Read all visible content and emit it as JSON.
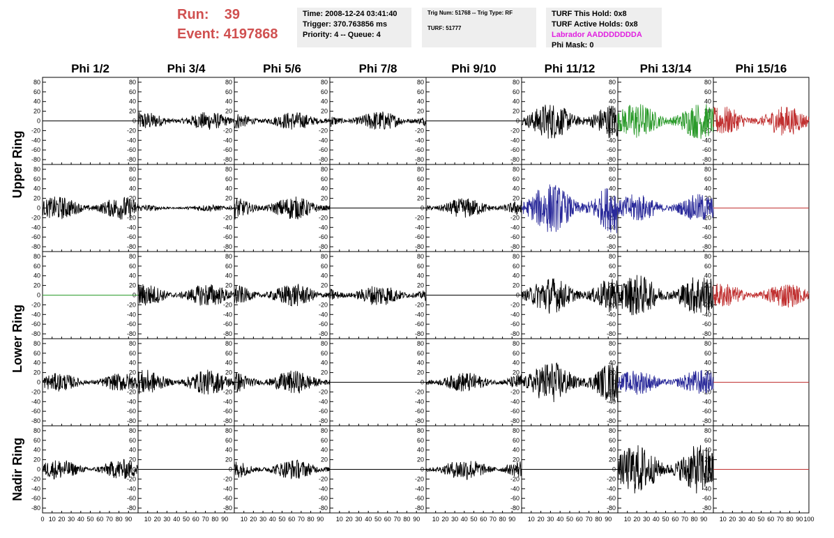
{
  "header": {
    "run_label": "Run:    39",
    "event_label": "Event: 4197868",
    "box1": [
      "Time: 2008-12-24 03:41:40",
      "Trigger: 370.763856 ms",
      "Priority: 4 -- Queue: 4"
    ],
    "box2": [
      "Trig Num: 51768 -- Trig Type: RF",
      "TURF: 51777"
    ],
    "box3": [
      "TURF This Hold: 0x8",
      "TURF Active Holds: 0x8",
      "Labrador AADDDDDDDA",
      "Phi Mask: 0"
    ]
  },
  "colors": {
    "accent_text": "#d05050",
    "magenta_text": "#e020e0",
    "info_bg": "#eeeeee",
    "black": "#000000",
    "green": "#2a9a2a",
    "blue": "#2a2a9a",
    "red": "#c03030"
  },
  "chart_data": {
    "type": "line",
    "columns": [
      "Phi 1/2",
      "Phi 3/4",
      "Phi 5/6",
      "Phi 7/8",
      "Phi 9/10",
      "Phi 11/12",
      "Phi 13/14",
      "Phi 15/16"
    ],
    "rows": [
      "Upper Ring",
      "Lower Ring",
      "Nadir Ring"
    ],
    "ylim": [
      -90,
      90
    ],
    "y_ticks": [
      -80,
      -60,
      -40,
      -20,
      0,
      20,
      40,
      60,
      80
    ],
    "xlim": [
      0,
      100
    ],
    "x_ticks": [
      0,
      10,
      20,
      30,
      40,
      50,
      60,
      70,
      80,
      90,
      100
    ],
    "x_tick_labels": [
      "0",
      "10",
      "20",
      "30",
      "40",
      "50",
      "60",
      "70",
      "80",
      "90",
      "10",
      "20",
      "30",
      "40",
      "50",
      "60",
      "70",
      "80",
      "90",
      "10",
      "20",
      "30",
      "40",
      "50",
      "60",
      "70",
      "80",
      "90",
      "10",
      "20",
      "30",
      "40",
      "50",
      "60",
      "70",
      "80",
      "90",
      "10",
      "20",
      "30",
      "40",
      "50",
      "60",
      "70",
      "80",
      "90",
      "10",
      "20",
      "30",
      "40",
      "50",
      "60",
      "70",
      "80",
      "90",
      "10",
      "20",
      "30",
      "40",
      "50",
      "60",
      "70",
      "80",
      "90",
      "10",
      "20",
      "30",
      "40",
      "50",
      "60",
      "70",
      "80",
      "90",
      "100"
    ],
    "panels": [
      {
        "row": 0,
        "col": 0,
        "color": "black",
        "amp": 0
      },
      {
        "row": 0,
        "col": 1,
        "color": "black",
        "amp": 11
      },
      {
        "row": 0,
        "col": 2,
        "color": "black",
        "amp": 11
      },
      {
        "row": 0,
        "col": 3,
        "color": "black",
        "amp": 12
      },
      {
        "row": 0,
        "col": 4,
        "color": "black",
        "amp": 0
      },
      {
        "row": 0,
        "col": 5,
        "color": "black",
        "amp": 22
      },
      {
        "row": 0,
        "col": 6,
        "color": "green",
        "amp": 22
      },
      {
        "row": 0,
        "col": 7,
        "color": "red",
        "amp": 18
      },
      {
        "row": 1,
        "col": 0,
        "color": "black",
        "amp": 14
      },
      {
        "row": 1,
        "col": 1,
        "color": "black",
        "amp": 4
      },
      {
        "row": 1,
        "col": 2,
        "color": "black",
        "amp": 14
      },
      {
        "row": 1,
        "col": 3,
        "color": "black",
        "amp": 0
      },
      {
        "row": 1,
        "col": 4,
        "color": "black",
        "amp": 12
      },
      {
        "row": 1,
        "col": 5,
        "color": "blue",
        "amp": 30
      },
      {
        "row": 1,
        "col": 6,
        "color": "blue",
        "amp": 17
      },
      {
        "row": 1,
        "col": 7,
        "color": "red",
        "amp": 0
      },
      {
        "row": 2,
        "col": 0,
        "color": "green",
        "amp": 0
      },
      {
        "row": 2,
        "col": 1,
        "color": "black",
        "amp": 14
      },
      {
        "row": 2,
        "col": 2,
        "color": "black",
        "amp": 14
      },
      {
        "row": 2,
        "col": 3,
        "color": "black",
        "amp": 13
      },
      {
        "row": 2,
        "col": 4,
        "color": "black",
        "amp": 0
      },
      {
        "row": 2,
        "col": 5,
        "color": "black",
        "amp": 22
      },
      {
        "row": 2,
        "col": 6,
        "color": "black",
        "amp": 25
      },
      {
        "row": 2,
        "col": 7,
        "color": "red",
        "amp": 15
      },
      {
        "row": 3,
        "col": 0,
        "color": "black",
        "amp": 11
      },
      {
        "row": 3,
        "col": 1,
        "color": "black",
        "amp": 15
      },
      {
        "row": 3,
        "col": 2,
        "color": "black",
        "amp": 14
      },
      {
        "row": 3,
        "col": 3,
        "color": "black",
        "amp": 0
      },
      {
        "row": 3,
        "col": 4,
        "color": "black",
        "amp": 12
      },
      {
        "row": 3,
        "col": 5,
        "color": "black",
        "amp": 25
      },
      {
        "row": 3,
        "col": 6,
        "color": "blue",
        "amp": 15
      },
      {
        "row": 3,
        "col": 7,
        "color": "red",
        "amp": 0
      },
      {
        "row": 4,
        "col": 0,
        "color": "black",
        "amp": 12
      },
      {
        "row": 4,
        "col": 1,
        "color": "black",
        "amp": 0
      },
      {
        "row": 4,
        "col": 2,
        "color": "black",
        "amp": 12
      },
      {
        "row": 4,
        "col": 3,
        "color": "black",
        "amp": 0
      },
      {
        "row": 4,
        "col": 4,
        "color": "black",
        "amp": 13
      },
      {
        "row": 4,
        "col": 5,
        "color": "black",
        "amp": 0
      },
      {
        "row": 4,
        "col": 6,
        "color": "black",
        "amp": 30
      },
      {
        "row": 4,
        "col": 7,
        "color": "red",
        "amp": 0
      }
    ]
  }
}
